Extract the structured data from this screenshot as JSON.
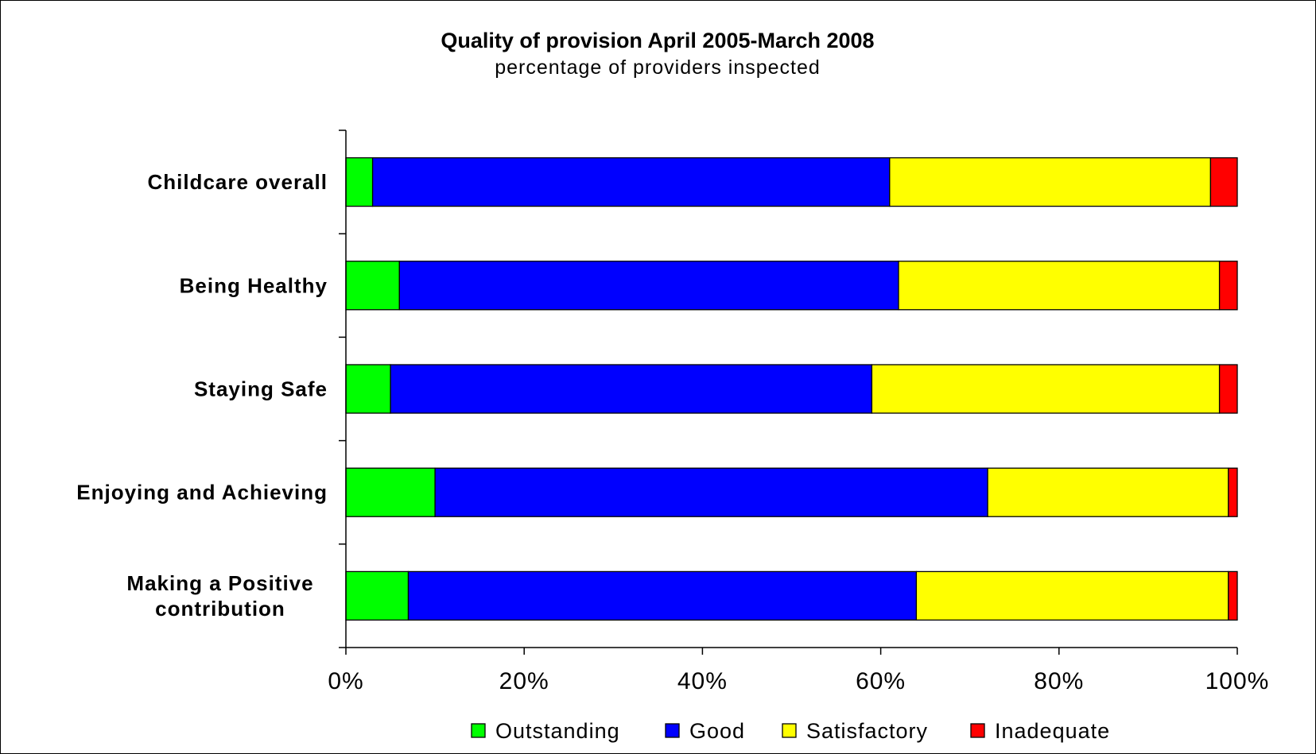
{
  "chart_data": {
    "type": "bar",
    "orientation": "horizontal",
    "stacked": "percent",
    "title": "Quality of provision April 2005-March 2008",
    "subtitle": "percentage of providers inspected",
    "categories": [
      [
        "Childcare overall"
      ],
      [
        "Being Healthy"
      ],
      [
        "Staying Safe"
      ],
      [
        "Enjoying and Achieving"
      ],
      [
        "Making a Positive",
        "contribution"
      ]
    ],
    "series": [
      {
        "name": "Outstanding",
        "color": "#00ff00",
        "values": [
          3,
          6,
          5,
          10,
          7
        ]
      },
      {
        "name": "Good",
        "color": "#0000ff",
        "values": [
          58,
          56,
          54,
          62,
          57
        ]
      },
      {
        "name": "Satisfactory",
        "color": "#ffff00",
        "values": [
          36,
          36,
          39,
          27,
          35
        ]
      },
      {
        "name": "Inadequate",
        "color": "#ff0000",
        "values": [
          3,
          2,
          2,
          1,
          1
        ]
      }
    ],
    "xlim": [
      0,
      100
    ],
    "xticks": [
      "0%",
      "20%",
      "40%",
      "60%",
      "80%",
      "100%"
    ],
    "grid": false,
    "legend_position": "bottom"
  }
}
